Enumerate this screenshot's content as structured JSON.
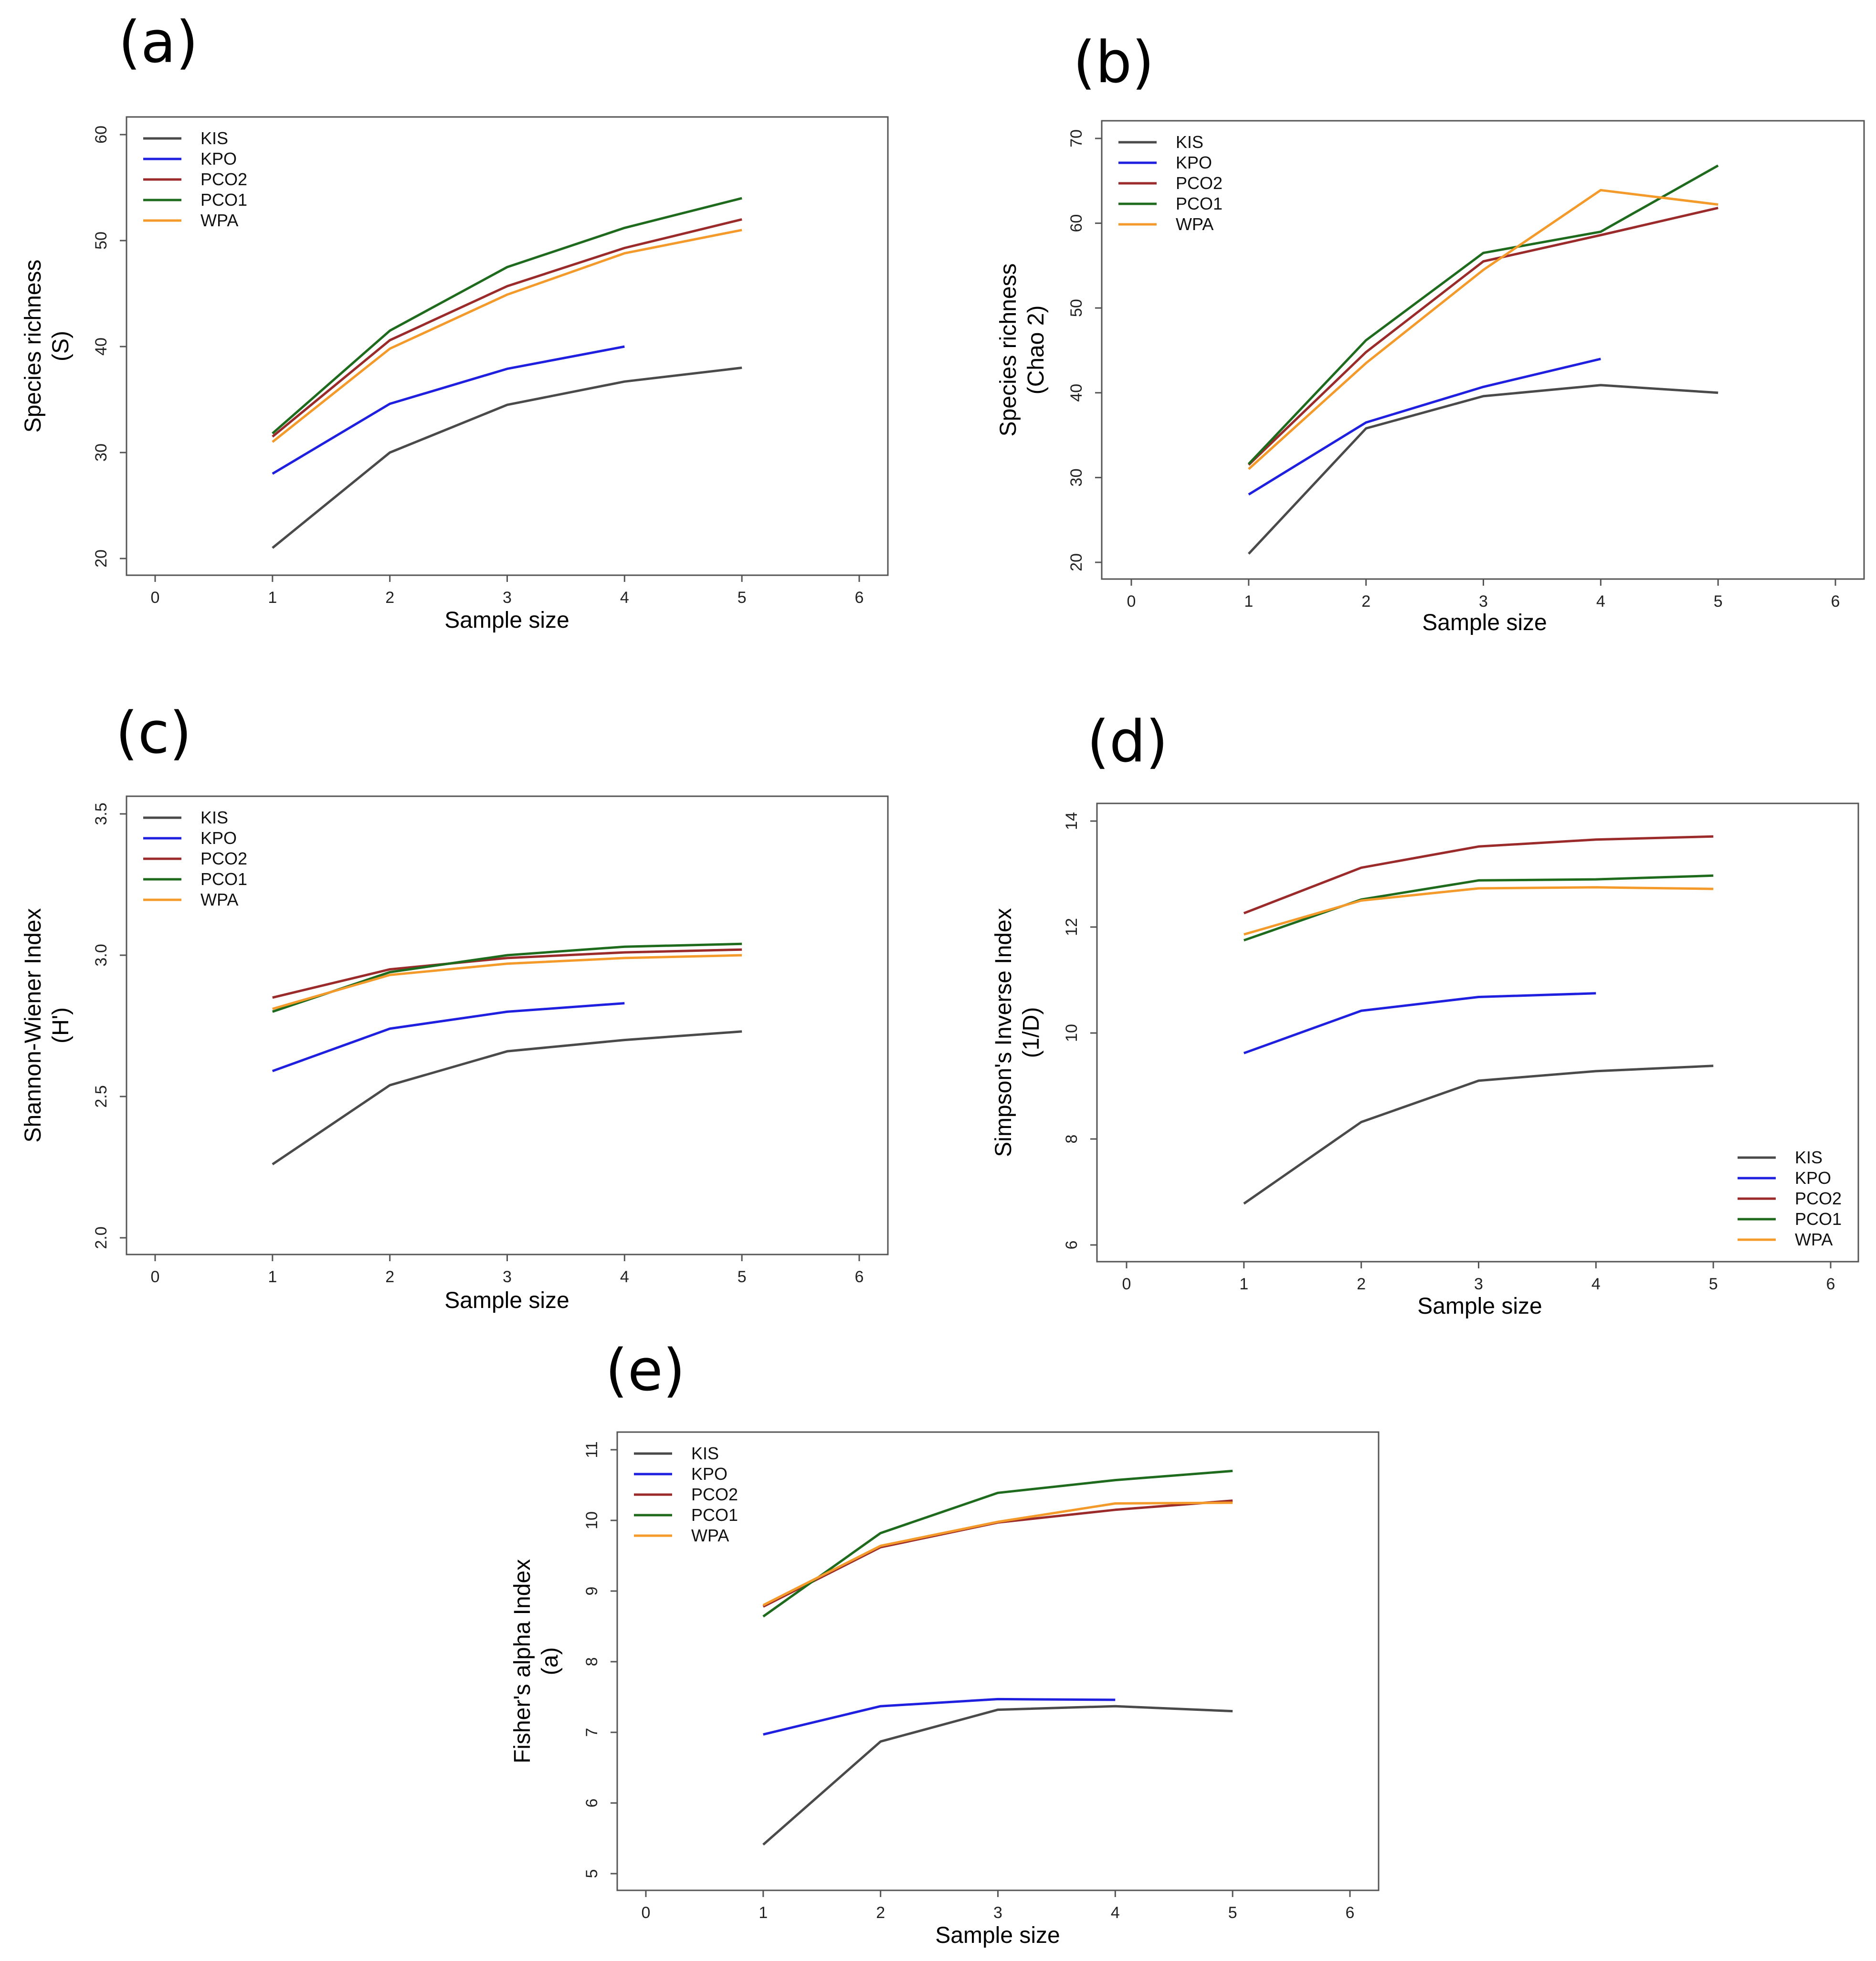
{
  "colors": {
    "KIS": "#4a4a4a",
    "KPO": "#1f1fe0",
    "PCO2": "#9b2a2a",
    "PCO1": "#1e6b1e",
    "WPA": "#f39a2a"
  },
  "chart_data": [
    {
      "panel": "(a)",
      "type": "line",
      "xlabel": "Sample size",
      "ylabel": [
        "Species richness",
        "(S)"
      ],
      "xlim": [
        0,
        6
      ],
      "ylim": [
        20,
        60
      ],
      "xticks": [
        0,
        1,
        2,
        3,
        4,
        5,
        6
      ],
      "yticks": [
        20,
        30,
        40,
        50,
        60
      ],
      "legend_position": "top-left",
      "series": [
        {
          "name": "KIS",
          "x": [
            1,
            2,
            3,
            4,
            5
          ],
          "values": [
            21,
            30,
            34.5,
            36.7,
            38
          ]
        },
        {
          "name": "KPO",
          "x": [
            1,
            2,
            3,
            4
          ],
          "values": [
            28,
            34.6,
            37.9,
            40
          ]
        },
        {
          "name": "PCO2",
          "x": [
            1,
            2,
            3,
            4,
            5
          ],
          "values": [
            31.5,
            40.6,
            45.7,
            49.3,
            52
          ]
        },
        {
          "name": "PCO1",
          "x": [
            1,
            2,
            3,
            4,
            5
          ],
          "values": [
            31.8,
            41.5,
            47.5,
            51.2,
            54
          ]
        },
        {
          "name": "WPA",
          "x": [
            1,
            2,
            3,
            4,
            5
          ],
          "values": [
            31,
            39.8,
            44.9,
            48.8,
            51
          ]
        }
      ]
    },
    {
      "panel": "(b)",
      "type": "line",
      "xlabel": "Sample size",
      "ylabel": [
        "Species richness",
        "(Chao 2)"
      ],
      "xlim": [
        0,
        6
      ],
      "ylim": [
        20,
        70
      ],
      "xticks": [
        0,
        1,
        2,
        3,
        4,
        5,
        6
      ],
      "yticks": [
        20,
        30,
        40,
        50,
        60,
        70
      ],
      "legend_position": "top-left",
      "series": [
        {
          "name": "KIS",
          "x": [
            1,
            2,
            3,
            4,
            5
          ],
          "values": [
            21,
            35.8,
            39.6,
            40.9,
            40
          ]
        },
        {
          "name": "KPO",
          "x": [
            1,
            2,
            3,
            4
          ],
          "values": [
            28,
            36.5,
            40.7,
            44
          ]
        },
        {
          "name": "PCO2",
          "x": [
            1,
            2,
            3,
            4,
            5
          ],
          "values": [
            31.5,
            44.8,
            55.5,
            58.6,
            61.8
          ]
        },
        {
          "name": "PCO1",
          "x": [
            1,
            2,
            3,
            4,
            5
          ],
          "values": [
            31.6,
            46.2,
            56.5,
            59,
            66.8
          ]
        },
        {
          "name": "WPA",
          "x": [
            1,
            2,
            3,
            4,
            5
          ],
          "values": [
            31,
            43.5,
            54.5,
            63.9,
            62.2
          ]
        }
      ]
    },
    {
      "panel": "(c)",
      "type": "line",
      "xlabel": "Sample size",
      "ylabel": [
        "Shannon-Wiener Index",
        "(H')"
      ],
      "xlim": [
        0,
        6
      ],
      "ylim": [
        2.0,
        3.5
      ],
      "xticks": [
        0,
        1,
        2,
        3,
        4,
        5,
        6
      ],
      "yticks": [
        "2.0",
        "2.5",
        "3.0",
        "3.5"
      ],
      "legend_position": "top-left",
      "series": [
        {
          "name": "KIS",
          "x": [
            1,
            2,
            3,
            4,
            5
          ],
          "values": [
            2.26,
            2.54,
            2.66,
            2.7,
            2.73
          ]
        },
        {
          "name": "KPO",
          "x": [
            1,
            2,
            3,
            4
          ],
          "values": [
            2.59,
            2.74,
            2.8,
            2.83
          ]
        },
        {
          "name": "PCO2",
          "x": [
            1,
            2,
            3,
            4,
            5
          ],
          "values": [
            2.85,
            2.95,
            2.99,
            3.01,
            3.02
          ]
        },
        {
          "name": "PCO1",
          "x": [
            1,
            2,
            3,
            4,
            5
          ],
          "values": [
            2.8,
            2.94,
            3.0,
            3.03,
            3.04
          ]
        },
        {
          "name": "WPA",
          "x": [
            1,
            2,
            3,
            4,
            5
          ],
          "values": [
            2.81,
            2.93,
            2.97,
            2.99,
            3.0
          ]
        }
      ]
    },
    {
      "panel": "(d)",
      "type": "line",
      "xlabel": "Sample size",
      "ylabel": [
        "Simpson's Inverse Index",
        "(1/D)"
      ],
      "xlim": [
        0,
        6
      ],
      "ylim": [
        6,
        14
      ],
      "xticks": [
        0,
        1,
        2,
        3,
        4,
        5,
        6
      ],
      "yticks": [
        6,
        8,
        10,
        12,
        14
      ],
      "legend_position": "bottom-right",
      "series": [
        {
          "name": "KIS",
          "x": [
            1,
            2,
            3,
            4,
            5
          ],
          "values": [
            6.78,
            8.32,
            9.1,
            9.28,
            9.38
          ]
        },
        {
          "name": "KPO",
          "x": [
            1,
            2,
            3,
            4
          ],
          "values": [
            9.62,
            10.42,
            10.68,
            10.75
          ]
        },
        {
          "name": "PCO2",
          "x": [
            1,
            2,
            3,
            4,
            5
          ],
          "values": [
            12.26,
            13.12,
            13.52,
            13.65,
            13.71
          ]
        },
        {
          "name": "PCO1",
          "x": [
            1,
            2,
            3,
            4,
            5
          ],
          "values": [
            11.75,
            12.52,
            12.88,
            12.9,
            12.97
          ]
        },
        {
          "name": "WPA",
          "x": [
            1,
            2,
            3,
            4,
            5
          ],
          "values": [
            11.86,
            12.5,
            12.73,
            12.75,
            12.72
          ]
        }
      ]
    },
    {
      "panel": "(e)",
      "type": "line",
      "xlabel": "Sample size",
      "ylabel": [
        "Fisher's alpha Index",
        "(a)"
      ],
      "xlim": [
        0,
        6
      ],
      "ylim": [
        5,
        11
      ],
      "xticks": [
        0,
        1,
        2,
        3,
        4,
        5,
        6
      ],
      "yticks": [
        5,
        6,
        7,
        8,
        9,
        10,
        11
      ],
      "legend_position": "top-left",
      "series": [
        {
          "name": "KIS",
          "x": [
            1,
            2,
            3,
            4,
            5
          ],
          "values": [
            5.41,
            6.87,
            7.32,
            7.37,
            7.3
          ]
        },
        {
          "name": "KPO",
          "x": [
            1,
            2,
            3,
            4
          ],
          "values": [
            6.97,
            7.37,
            7.47,
            7.46
          ]
        },
        {
          "name": "PCO2",
          "x": [
            1,
            2,
            3,
            4,
            5
          ],
          "values": [
            8.78,
            9.62,
            9.97,
            10.15,
            10.28
          ]
        },
        {
          "name": "PCO1",
          "x": [
            1,
            2,
            3,
            4,
            5
          ],
          "values": [
            8.64,
            9.82,
            10.39,
            10.57,
            10.7
          ]
        },
        {
          "name": "WPA",
          "x": [
            1,
            2,
            3,
            4,
            5
          ],
          "values": [
            8.8,
            9.64,
            9.98,
            10.24,
            10.25
          ]
        }
      ]
    }
  ]
}
